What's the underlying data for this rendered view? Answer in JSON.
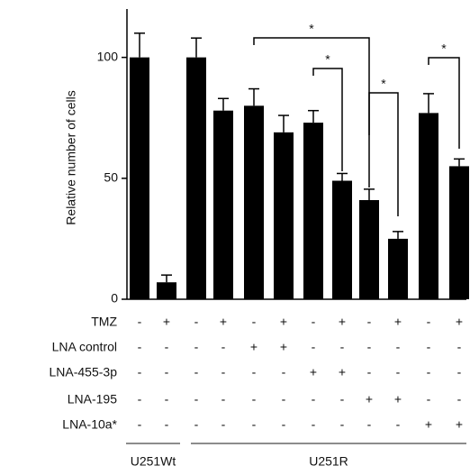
{
  "chart_data": {
    "type": "bar",
    "y_label": "Relative number of cells",
    "ylim": [
      0,
      120
    ],
    "yticks": [
      0,
      50,
      100
    ],
    "color": "#000000",
    "series": [
      {
        "values": [
          100,
          7,
          100,
          78,
          80,
          69,
          73,
          49,
          41,
          25,
          77,
          55
        ],
        "errors": [
          10,
          3,
          8,
          5,
          7,
          7,
          5,
          3,
          4.5,
          3,
          8,
          3
        ]
      }
    ],
    "conditions": [
      {
        "name": "TMZ",
        "values": [
          "-",
          "+",
          "-",
          "+",
          "-",
          "+",
          "-",
          "+",
          "-",
          "+",
          "-",
          "+"
        ]
      },
      {
        "name": "LNA control",
        "values": [
          "-",
          "-",
          "-",
          "-",
          "+",
          "+",
          "-",
          "-",
          "-",
          "-",
          "-",
          "-"
        ]
      },
      {
        "name": "LNA-455-3p",
        "values": [
          "-",
          "-",
          "-",
          "-",
          "-",
          "-",
          "+",
          "+",
          "-",
          "-",
          "-",
          "-"
        ]
      },
      {
        "name": "LNA-195",
        "values": [
          "-",
          "-",
          "-",
          "-",
          "-",
          "-",
          "-",
          "-",
          "+",
          "+",
          "-",
          "-"
        ]
      },
      {
        "name": "LNA-10a*",
        "values": [
          "-",
          "-",
          "-",
          "-",
          "-",
          "-",
          "-",
          "-",
          "-",
          "-",
          "+",
          "+"
        ]
      }
    ],
    "groups": [
      "U251Wt",
      "U251R"
    ],
    "annotations": [
      "*",
      "*",
      "*",
      "*"
    ]
  }
}
